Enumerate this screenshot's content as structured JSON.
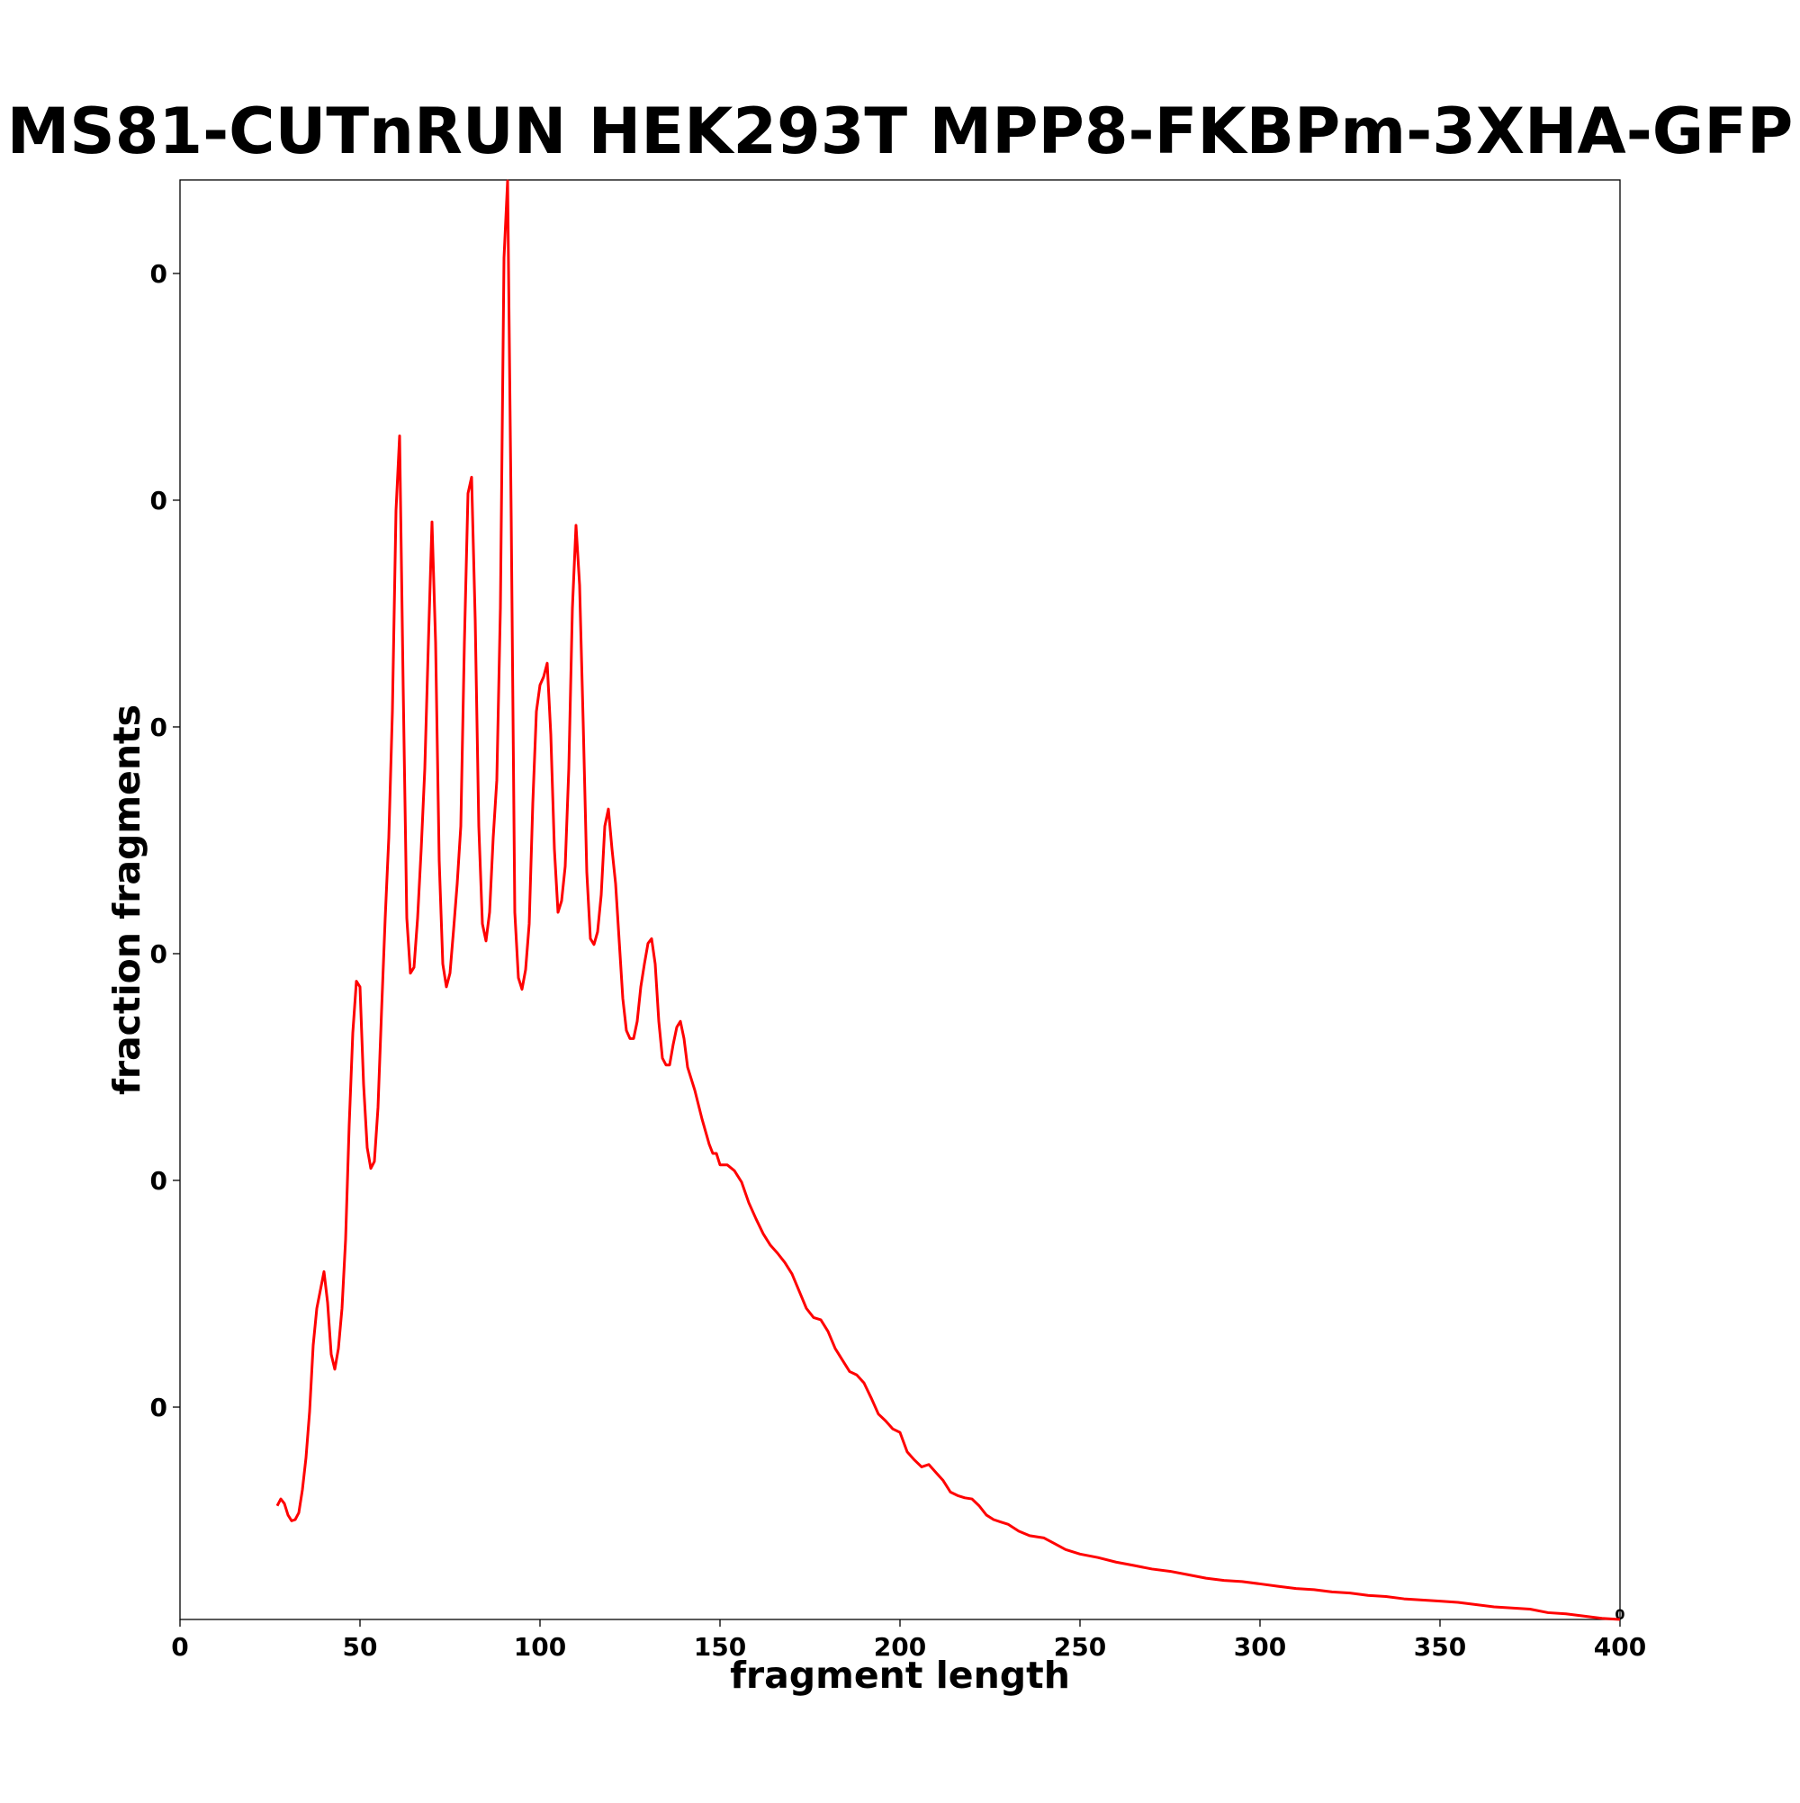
{
  "chart_data": {
    "type": "line",
    "title": "MS81-CUTnRUN HEK293T MPP8-FKBPm-3XHA-GFP",
    "x_label": "fragment length",
    "y_label": "fraction fragments",
    "corner_label": "0",
    "color": "#ff0000",
    "grid": false,
    "xlim": [
      0,
      400
    ],
    "xticks": [
      0,
      50,
      100,
      150,
      200,
      250,
      300,
      350,
      400
    ],
    "ylim": [
      0.000127,
      0.012825
    ],
    "yticks": [
      {
        "value": 0.002,
        "label": "0"
      },
      {
        "value": 0.004,
        "label": "0"
      },
      {
        "value": 0.006,
        "label": "0"
      },
      {
        "value": 0.008,
        "label": "0"
      },
      {
        "value": 0.01,
        "label": "0"
      },
      {
        "value": 0.012,
        "label": "0"
      }
    ],
    "x": [
      27,
      28,
      29,
      30,
      31,
      32,
      33,
      34,
      35,
      36,
      37,
      38,
      40,
      41,
      42,
      43,
      44,
      45,
      46,
      47,
      48,
      49,
      50,
      51,
      52,
      53,
      54,
      55,
      56,
      57,
      58,
      59,
      60,
      61,
      62,
      63,
      64,
      65,
      66,
      67,
      68,
      69,
      70,
      71,
      72,
      73,
      74,
      75,
      76,
      77,
      78,
      79,
      80,
      81,
      82,
      83,
      84,
      85,
      86,
      87,
      88,
      89,
      90,
      91,
      92,
      93,
      94,
      95,
      96,
      97,
      98,
      99,
      100,
      101,
      102,
      103,
      104,
      105,
      106,
      107,
      108,
      109,
      110,
      111,
      112,
      113,
      114,
      115,
      116,
      117,
      118,
      119,
      120,
      121,
      122,
      123,
      124,
      125,
      126,
      127,
      128,
      129,
      130,
      131,
      132,
      133,
      134,
      135,
      136,
      137,
      138,
      139,
      140,
      141,
      143,
      145,
      147,
      148,
      149,
      150,
      152,
      154,
      156,
      158,
      160,
      162,
      164,
      166,
      168,
      170,
      172,
      174,
      176,
      178,
      180,
      182,
      184,
      186,
      188,
      190,
      192,
      194,
      196,
      198,
      200,
      202,
      204,
      206,
      208,
      210,
      212,
      214,
      216,
      218,
      220,
      222,
      224,
      226,
      228,
      230,
      233,
      236,
      240,
      243,
      246,
      250,
      255,
      260,
      265,
      270,
      275,
      280,
      285,
      290,
      295,
      300,
      305,
      310,
      315,
      320,
      325,
      330,
      335,
      340,
      345,
      350,
      355,
      360,
      365,
      370,
      375,
      380,
      385,
      390,
      395,
      400
    ],
    "values": [
      0.001129,
      0.00119,
      0.001149,
      0.001048,
      0.000997,
      0.001008,
      0.001068,
      0.001271,
      0.001554,
      0.00196,
      0.002547,
      0.002871,
      0.003195,
      0.002922,
      0.002466,
      0.002334,
      0.002517,
      0.002871,
      0.003479,
      0.004491,
      0.005301,
      0.005757,
      0.005707,
      0.004846,
      0.004289,
      0.004106,
      0.004167,
      0.004643,
      0.005504,
      0.006314,
      0.007023,
      0.008137,
      0.009909,
      0.010567,
      0.00834,
      0.006314,
      0.005828,
      0.005879,
      0.006314,
      0.006922,
      0.007631,
      0.008745,
      0.009808,
      0.008745,
      0.006821,
      0.005909,
      0.005707,
      0.005828,
      0.006213,
      0.006618,
      0.007124,
      0.008745,
      0.010061,
      0.010203,
      0.008947,
      0.007124,
      0.006263,
      0.006112,
      0.006365,
      0.007023,
      0.007529,
      0.009048,
      0.012137,
      0.012816,
      0.009859,
      0.006365,
      0.005787,
      0.005686,
      0.005858,
      0.006263,
      0.007327,
      0.008137,
      0.00837,
      0.008441,
      0.008562,
      0.007934,
      0.006922,
      0.006365,
      0.006466,
      0.00677,
      0.007631,
      0.009048,
      0.009778,
      0.009251,
      0.008036,
      0.006719,
      0.006132,
      0.006081,
      0.006193,
      0.006517,
      0.007124,
      0.007276,
      0.006922,
      0.006618,
      0.006112,
      0.005605,
      0.005322,
      0.005251,
      0.005251,
      0.005403,
      0.005707,
      0.005909,
      0.006091,
      0.006132,
      0.005909,
      0.005403,
      0.005079,
      0.005018,
      0.005018,
      0.0052,
      0.005352,
      0.005403,
      0.005251,
      0.004998,
      0.004795,
      0.004542,
      0.004319,
      0.004238,
      0.004238,
      0.004137,
      0.004137,
      0.004086,
      0.003985,
      0.003803,
      0.003661,
      0.003529,
      0.003428,
      0.003357,
      0.003276,
      0.003175,
      0.003023,
      0.002871,
      0.00279,
      0.00277,
      0.002668,
      0.002517,
      0.002415,
      0.002314,
      0.002284,
      0.002213,
      0.002081,
      0.001939,
      0.001879,
      0.001808,
      0.001777,
      0.001605,
      0.001534,
      0.001473,
      0.001494,
      0.001423,
      0.001352,
      0.001251,
      0.00122,
      0.0012,
      0.00119,
      0.001129,
      0.001048,
      0.001008,
      0.000987,
      0.000967,
      0.000906,
      0.000866,
      0.000846,
      0.000795,
      0.000744,
      0.000704,
      0.000673,
      0.000633,
      0.000603,
      0.000572,
      0.000552,
      0.000522,
      0.000491,
      0.000471,
      0.000461,
      0.000441,
      0.00042,
      0.0004,
      0.00039,
      0.00037,
      0.00036,
      0.000339,
      0.000329,
      0.000309,
      0.000299,
      0.000289,
      0.000278,
      0.000258,
      0.000238,
      0.000228,
      0.000218,
      0.000187,
      0.000177,
      0.000157,
      0.000137,
      0.000127
    ]
  }
}
